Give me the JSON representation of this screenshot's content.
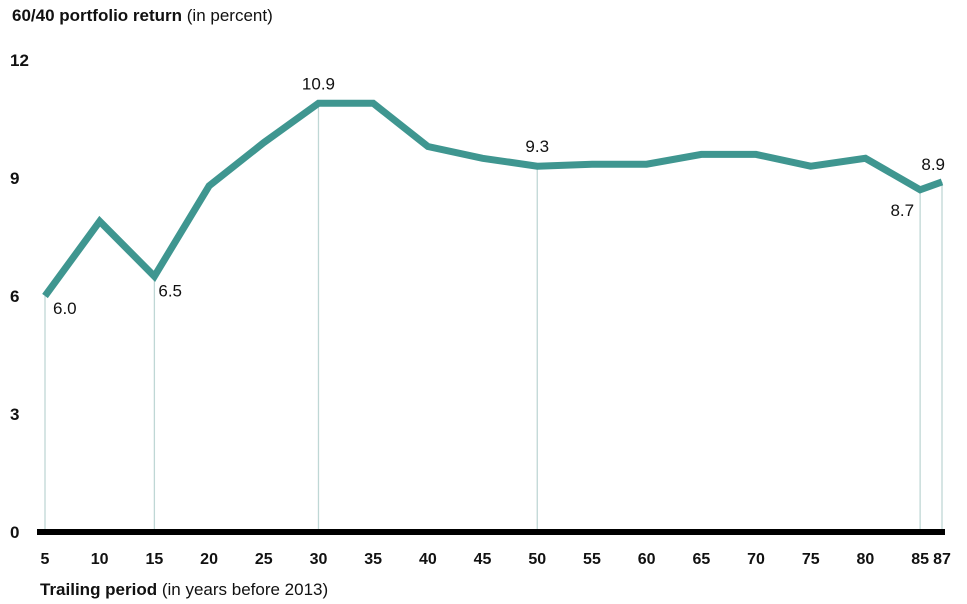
{
  "title_bold": "60/40 portfolio return",
  "title_rest": " (in percent)",
  "xlabel_bold": "Trailing period",
  "xlabel_rest": " (in years before 2013)",
  "colors": {
    "line": "#3f9690",
    "drop_line": "#bfd7d5",
    "axis": "#000000"
  },
  "chart_data": {
    "type": "line",
    "x": [
      5,
      10,
      15,
      20,
      25,
      30,
      35,
      40,
      45,
      50,
      55,
      60,
      65,
      70,
      75,
      80,
      85,
      87
    ],
    "xtick_labels": [
      "5",
      "10",
      "15",
      "20",
      "25",
      "30",
      "35",
      "40",
      "45",
      "50",
      "55",
      "60",
      "65",
      "70",
      "75",
      "80",
      "85",
      "87"
    ],
    "series": [
      {
        "values": [
          6.0,
          7.9,
          6.5,
          8.8,
          9.9,
          10.9,
          10.9,
          9.8,
          9.5,
          9.3,
          9.35,
          9.35,
          9.6,
          9.6,
          9.3,
          9.5,
          8.7,
          8.9
        ]
      }
    ],
    "ylim": [
      0,
      12
    ],
    "yticks": [
      0,
      3,
      6,
      9,
      12
    ],
    "annotations": [
      {
        "x": 5,
        "y": 6.0,
        "label": "6.0"
      },
      {
        "x": 15,
        "y": 6.5,
        "label": "6.5"
      },
      {
        "x": 30,
        "y": 10.9,
        "label": "10.9"
      },
      {
        "x": 50,
        "y": 9.3,
        "label": "9.3"
      },
      {
        "x": 85,
        "y": 8.7,
        "label": "8.7"
      },
      {
        "x": 87,
        "y": 8.9,
        "label": "8.9"
      }
    ],
    "grid": false,
    "legend": "none"
  }
}
